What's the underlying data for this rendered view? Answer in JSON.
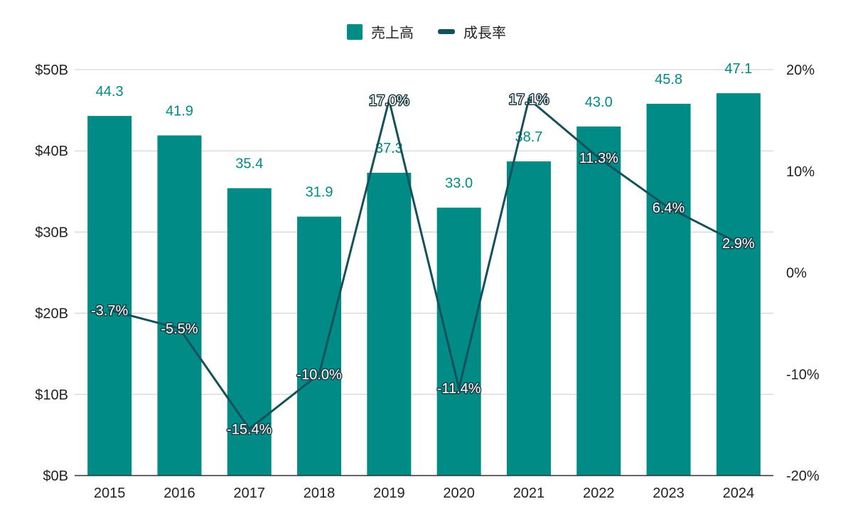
{
  "chart_data": {
    "type": "bar",
    "categories": [
      "2015",
      "2016",
      "2017",
      "2018",
      "2019",
      "2020",
      "2021",
      "2022",
      "2023",
      "2024"
    ],
    "series": [
      {
        "name": "売上高",
        "chart_type": "bar",
        "axis": "left",
        "color": "#008b86",
        "values": [
          44.3,
          41.9,
          35.4,
          31.9,
          37.3,
          33.0,
          38.7,
          43.0,
          45.8,
          47.1
        ],
        "labels": [
          "44.3",
          "41.9",
          "35.4",
          "31.9",
          "37.3",
          "33.0",
          "38.7",
          "43.0",
          "45.8",
          "47.1"
        ]
      },
      {
        "name": "成長率",
        "chart_type": "line",
        "axis": "right",
        "color": "#15515b",
        "values": [
          -3.7,
          -5.5,
          -15.4,
          -10.0,
          17.0,
          -11.4,
          17.1,
          11.3,
          6.4,
          2.9
        ],
        "labels": [
          "-3.7%",
          "-5.5%",
          "-15.4%",
          "-10.0%",
          "17.0%",
          "-11.4%",
          "17.1%",
          "11.3%",
          "6.4%",
          "2.9%"
        ]
      }
    ],
    "y_left": {
      "ylim": [
        0,
        50
      ],
      "ticks": [
        "$0B",
        "$10B",
        "$20B",
        "$30B",
        "$40B",
        "$50B"
      ]
    },
    "y_right": {
      "ylim": [
        -20,
        20
      ],
      "ticks": [
        "-20%",
        "-10%",
        "0%",
        "10%",
        "20%"
      ]
    },
    "grid": true,
    "legend_position": "top-center"
  }
}
